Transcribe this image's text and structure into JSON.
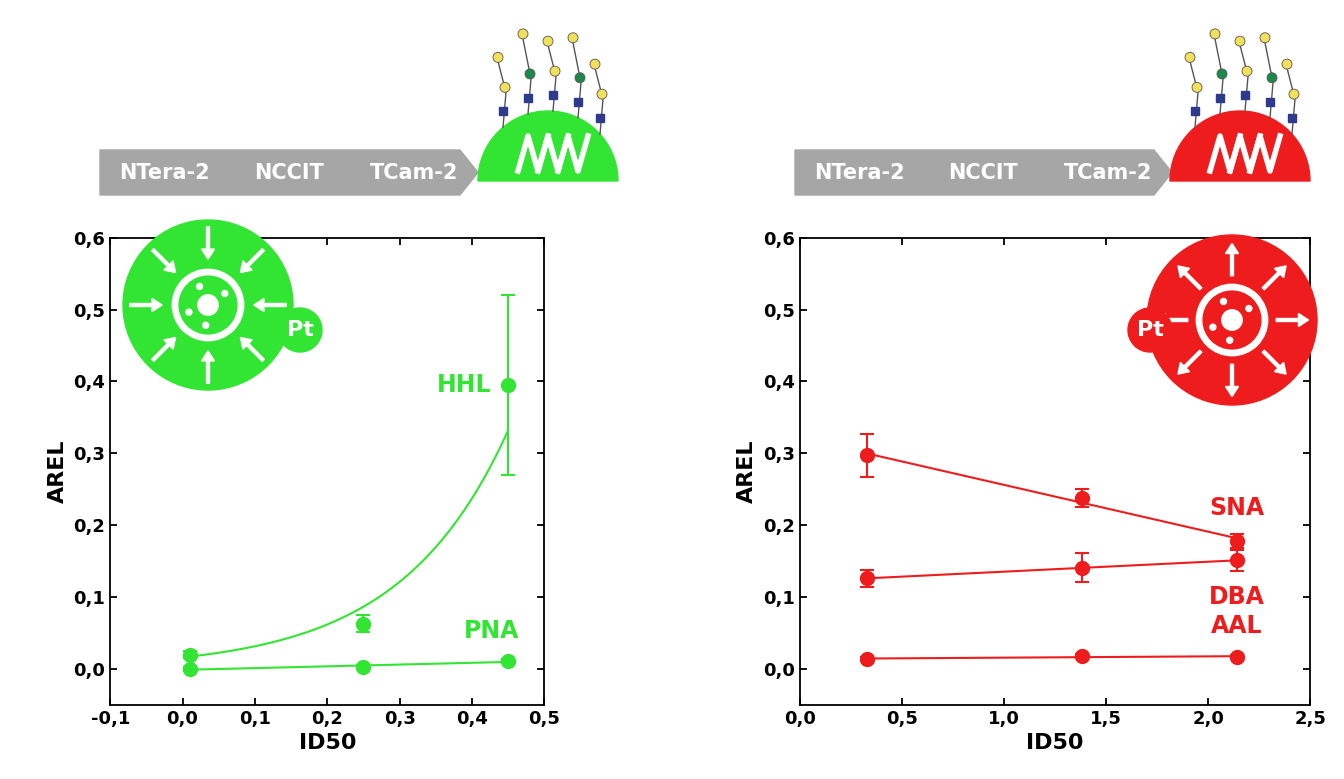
{
  "chart_data": [
    {
      "type": "scatter",
      "banner": [
        "NTera-2",
        "NCCIT",
        "TCam-2"
      ],
      "icon_text": "Pt",
      "color": "#33e533",
      "xlabel": "ID50",
      "ylabel": "AREL",
      "x": [
        0.01,
        0.25,
        0.45
      ],
      "xlim": [
        -0.1,
        0.5
      ],
      "xticks": [
        {
          "value": -0.1,
          "label": "-0,1"
        },
        {
          "value": 0.0,
          "label": "0,0"
        },
        {
          "value": 0.1,
          "label": "0,1"
        },
        {
          "value": 0.2,
          "label": "0,2"
        },
        {
          "value": 0.3,
          "label": "0,3"
        },
        {
          "value": 0.4,
          "label": "0,4"
        },
        {
          "value": 0.5,
          "label": "0,5"
        }
      ],
      "ylim": [
        -0.05,
        0.6
      ],
      "yticks": [
        {
          "value": 0.0,
          "label": "0,0"
        },
        {
          "value": 0.1,
          "label": "0,1"
        },
        {
          "value": 0.2,
          "label": "0,2"
        },
        {
          "value": 0.3,
          "label": "0,3"
        },
        {
          "value": 0.4,
          "label": "0,4"
        },
        {
          "value": 0.5,
          "label": "0,5"
        },
        {
          "value": 0.6,
          "label": "0,6"
        }
      ],
      "series": [
        {
          "name": "HHL",
          "color": "#33e533",
          "values": [
            0.02,
            0.063,
            0.395
          ],
          "errors": [
            0.005,
            0.012,
            0.125
          ],
          "marker": "o",
          "line_style": "exponential"
        },
        {
          "name": "PNA",
          "color": "#33e533",
          "values": [
            0.0,
            0.003,
            0.011
          ],
          "errors": [
            0.003,
            0.003,
            0.003
          ],
          "marker": "o",
          "line_style": "linear"
        }
      ]
    },
    {
      "type": "scatter",
      "banner": [
        "NTera-2",
        "NCCIT",
        "TCam-2"
      ],
      "icon_text": "Pt",
      "color": "#ee1c1c",
      "xlabel": "ID50",
      "ylabel": "AREL",
      "x": [
        0.33,
        1.38,
        2.14
      ],
      "xlim": [
        0.0,
        2.5
      ],
      "xticks": [
        {
          "value": 0.0,
          "label": "0,0"
        },
        {
          "value": 0.5,
          "label": "0,5"
        },
        {
          "value": 1.0,
          "label": "1,0"
        },
        {
          "value": 1.5,
          "label": "1,5"
        },
        {
          "value": 2.0,
          "label": "2,0"
        },
        {
          "value": 2.5,
          "label": "2,5"
        }
      ],
      "ylim": [
        -0.05,
        0.6
      ],
      "yticks": [
        {
          "value": 0.0,
          "label": "0,0"
        },
        {
          "value": 0.1,
          "label": "0,1"
        },
        {
          "value": 0.2,
          "label": "0,2"
        },
        {
          "value": 0.3,
          "label": "0,3"
        },
        {
          "value": 0.4,
          "label": "0,4"
        },
        {
          "value": 0.5,
          "label": "0,5"
        },
        {
          "value": 0.6,
          "label": "0,6"
        }
      ],
      "series": [
        {
          "name": "SNA",
          "color": "#ee1c1c",
          "values": [
            0.297,
            0.238,
            0.178
          ],
          "errors": [
            0.03,
            0.013,
            0.01
          ],
          "marker": "o",
          "line_style": "linear"
        },
        {
          "name": "DBA",
          "color": "#ee1c1c",
          "values": [
            0.126,
            0.141,
            0.151
          ],
          "errors": [
            0.012,
            0.02,
            0.015
          ],
          "marker": "o",
          "line_style": "linear"
        },
        {
          "name": "AAL",
          "color": "#ee1c1c",
          "values": [
            0.014,
            0.018,
            0.017
          ],
          "errors": [
            0.003,
            0.003,
            0.003
          ],
          "marker": "o",
          "line_style": "linear"
        }
      ]
    }
  ]
}
